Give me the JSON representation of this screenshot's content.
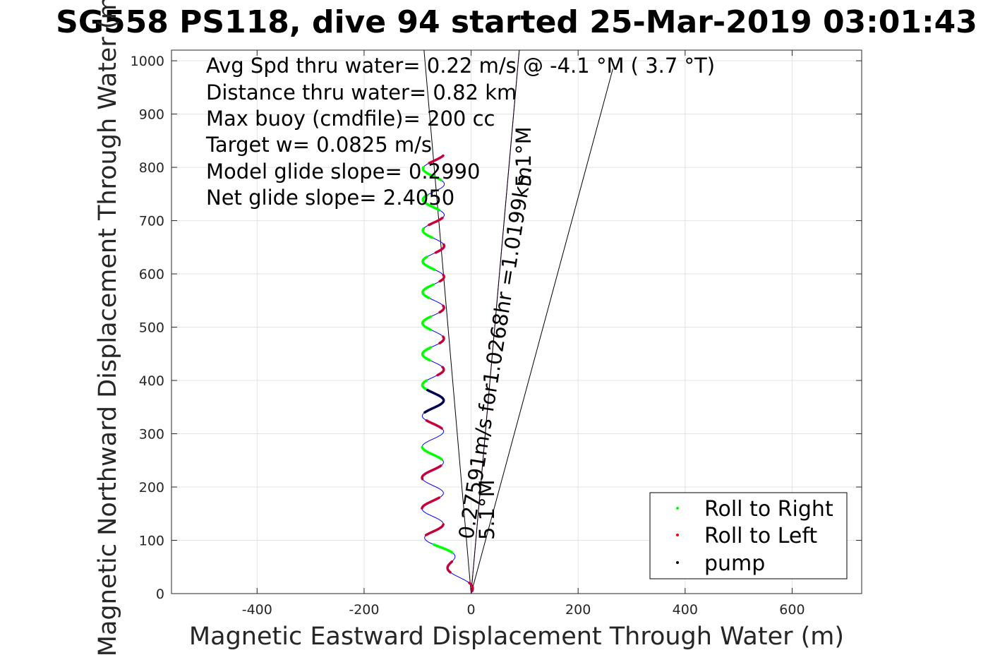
{
  "chart_data": {
    "type": "line",
    "title": "SG558 PS118, dive 94 started 25-Mar-2019 03:01:43",
    "xlabel": "Magnetic Eastward Displacement Through Water (m)",
    "ylabel": "Magnetic Northward Displacement Through Water (m)",
    "xlim": [
      -560,
      730
    ],
    "ylim": [
      0,
      1020
    ],
    "xticks": [
      -400,
      -200,
      0,
      200,
      400,
      600
    ],
    "yticks": [
      0,
      100,
      200,
      300,
      400,
      500,
      600,
      700,
      800,
      900,
      1000
    ],
    "grid": true,
    "legend_position": "bottom-right",
    "stats": [
      "Avg Spd thru water=  0.22 m/s @  -4.1 °M (  3.7 °T)",
      "Distance thru water=  0.82 km",
      "Max buoy (cmdfile)= 200 cc",
      "Target w= 0.0825 m/s",
      "Model glide slope= 0.2990",
      "Net glide slope= 2.4050"
    ],
    "rotated_annotations": [
      {
        "text": "0.27591m/s for1.0268hr =1.0199km",
        "anchor_x": 0,
        "anchor_y": 0
      },
      {
        "text": "5.1°M",
        "anchor_x": 0,
        "anchor_y": 0
      },
      {
        "text": "5.1°M",
        "anchor_x": 0,
        "anchor_y": 0
      }
    ],
    "legend": [
      {
        "label": "Roll to Right",
        "color": "#00ff00"
      },
      {
        "label": "Roll to Left",
        "color": "#ff0000"
      },
      {
        "label": "pump",
        "color": "#000000"
      }
    ],
    "track": {
      "color": "#0000ff",
      "start": [
        0,
        0
      ],
      "end": [
        -62,
        822
      ],
      "base_x_offset": -72,
      "wave_amplitude": 20,
      "wave_period": 58
    },
    "roll_right_segments": [
      [
        380,
        400
      ],
      [
        438,
        462
      ],
      [
        495,
        520
      ],
      [
        555,
        580
      ],
      [
        608,
        632
      ],
      [
        668,
        685
      ],
      [
        720,
        748
      ],
      [
        776,
        800
      ],
      [
        252,
        275
      ],
      [
        77,
        92
      ]
    ],
    "roll_left_segments": [
      [
        410,
        425
      ],
      [
        470,
        482
      ],
      [
        528,
        540
      ],
      [
        586,
        598
      ],
      [
        640,
        655
      ],
      [
        692,
        705
      ],
      [
        808,
        822
      ],
      [
        310,
        325
      ],
      [
        215,
        240
      ],
      [
        160,
        180
      ],
      [
        110,
        130
      ],
      [
        40,
        60
      ],
      [
        5,
        20
      ]
    ],
    "pump_segment": [
      340,
      382
    ],
    "reference_lines": [
      {
        "name": "heading-line-magenta",
        "color": "#cc00cc",
        "end": [
          90,
          1020
        ]
      },
      {
        "name": "heading-line-left",
        "color": "#000000",
        "end": [
          -88,
          1020
        ]
      },
      {
        "name": "heading-line-mid",
        "color": "#000000",
        "end": [
          90,
          1020
        ]
      },
      {
        "name": "heading-line-right",
        "color": "#000000",
        "end": [
          265,
          985
        ]
      }
    ]
  }
}
